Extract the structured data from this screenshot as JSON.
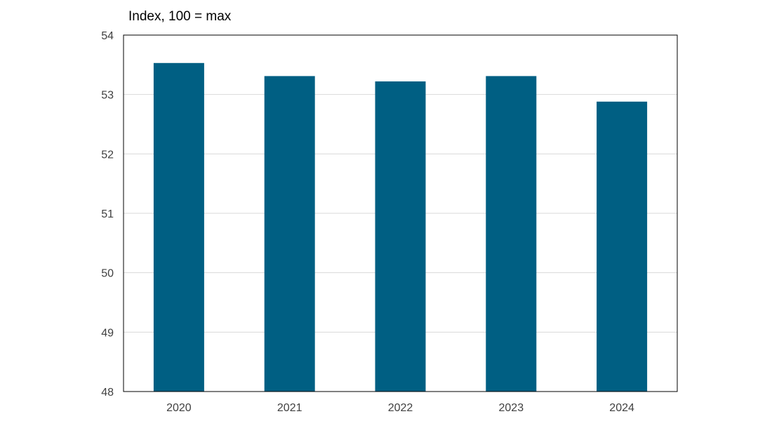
{
  "chart_data": {
    "type": "bar",
    "ylabel": "Index, 100 = max",
    "categories": [
      "2020",
      "2021",
      "2022",
      "2023",
      "2024"
    ],
    "values": [
      53.53,
      53.31,
      53.22,
      53.31,
      52.88
    ],
    "ylim": [
      48,
      54
    ],
    "yticks": [
      48,
      49,
      50,
      51,
      52,
      53,
      54
    ],
    "grid": true,
    "legend": "none",
    "bar_color": "#005f83",
    "grid_color": "#d9d9d9",
    "frame_color": "#000000"
  }
}
